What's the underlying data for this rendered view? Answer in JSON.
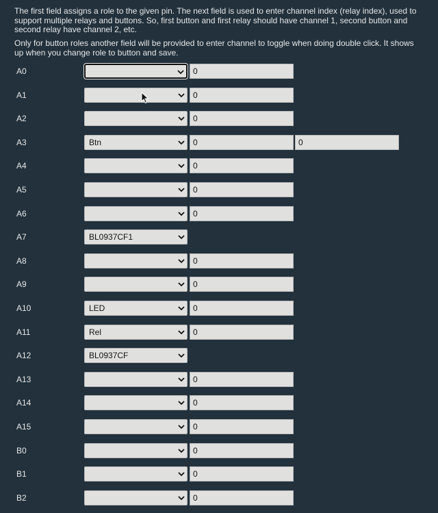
{
  "intro": {
    "paragraph1": "The first field assigns a role to the given pin. The next field is used to enter channel index (relay index), used to support multiple relays and buttons. So, first button and first relay should have channel 1, second button and second relay have channel 2, etc.",
    "paragraph2": "Only for button roles another field will be provided to enter channel to toggle when doing double click. It shows up when you change role to button and save."
  },
  "pins": [
    {
      "label": "A0",
      "role": "",
      "channel": "0",
      "focused": true
    },
    {
      "label": "A1",
      "role": "",
      "channel": "0"
    },
    {
      "label": "A2",
      "role": "",
      "channel": "0"
    },
    {
      "label": "A3",
      "role": "Btn",
      "channel": "0",
      "extra": "0"
    },
    {
      "label": "A4",
      "role": "",
      "channel": "0"
    },
    {
      "label": "A5",
      "role": "",
      "channel": "0"
    },
    {
      "label": "A6",
      "role": "",
      "channel": "0"
    },
    {
      "label": "A7",
      "role": "BL0937CF1"
    },
    {
      "label": "A8",
      "role": "",
      "channel": "0"
    },
    {
      "label": "A9",
      "role": "",
      "channel": "0"
    },
    {
      "label": "A10",
      "role": "LED",
      "channel": "0"
    },
    {
      "label": "A11",
      "role": "Rel",
      "channel": "0"
    },
    {
      "label": "A12",
      "role": "BL0937CF"
    },
    {
      "label": "A13",
      "role": "",
      "channel": "0"
    },
    {
      "label": "A14",
      "role": "",
      "channel": "0"
    },
    {
      "label": "A15",
      "role": "",
      "channel": "0"
    },
    {
      "label": "B0",
      "role": "",
      "channel": "0"
    },
    {
      "label": "B1",
      "role": "",
      "channel": "0"
    },
    {
      "label": "B2",
      "role": "",
      "channel": "0"
    }
  ]
}
